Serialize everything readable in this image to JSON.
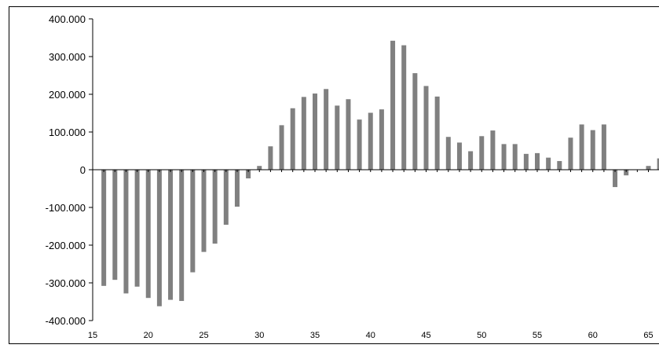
{
  "chart_data": {
    "type": "bar",
    "title": "",
    "xlabel": "",
    "ylabel": "",
    "ylim": [
      -400000,
      400000
    ],
    "xlim": [
      15,
      66
    ],
    "x_ticks": [
      15,
      20,
      25,
      30,
      35,
      40,
      45,
      50,
      55,
      60,
      65
    ],
    "x_tick_labels": [
      "15",
      "20",
      "25",
      "30",
      "35",
      "40",
      "45",
      "50",
      "55",
      "60",
      "65"
    ],
    "y_ticks": [
      400000,
      300000,
      200000,
      100000,
      0,
      -100000,
      -200000,
      -300000,
      -400000
    ],
    "y_tick_labels": [
      "400.000",
      "300.000",
      "200.000",
      "100.000",
      "0",
      "-100.000",
      "-200.000",
      "-300.000",
      "-400.000"
    ],
    "grid": false,
    "bar_color": "#808080",
    "x": [
      16,
      17,
      18,
      19,
      20,
      21,
      22,
      23,
      24,
      25,
      26,
      27,
      28,
      29,
      30,
      31,
      32,
      33,
      34,
      35,
      36,
      37,
      38,
      39,
      40,
      41,
      42,
      43,
      44,
      45,
      46,
      47,
      48,
      49,
      50,
      51,
      52,
      53,
      54,
      55,
      56,
      57,
      58,
      59,
      60,
      61,
      62,
      63,
      64,
      65,
      66
    ],
    "values": [
      -308000,
      -292000,
      -328000,
      -310000,
      -340000,
      -362000,
      -345000,
      -348000,
      -272000,
      -218000,
      -196000,
      -146000,
      -98000,
      -23000,
      10000,
      62000,
      118000,
      163000,
      193000,
      202000,
      214000,
      170000,
      187000,
      133000,
      151000,
      160000,
      342000,
      330000,
      256000,
      222000,
      194000,
      87000,
      72000,
      49000,
      89000,
      104000,
      68000,
      68000,
      42000,
      44000,
      32000,
      23000,
      85000,
      120000,
      105000,
      120000,
      -46000,
      -15000,
      0,
      10000,
      30000
    ]
  }
}
